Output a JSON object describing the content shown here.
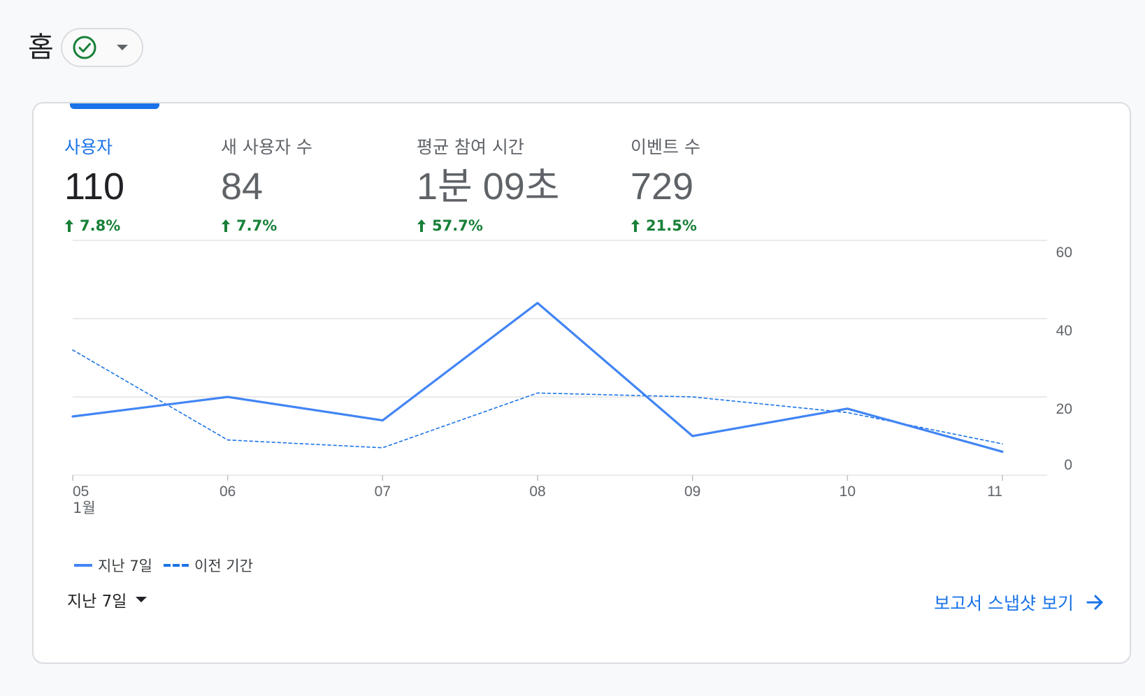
{
  "header": {
    "title": "홈"
  },
  "metrics": [
    {
      "label": "사용자",
      "value": "110",
      "change": "7.8%",
      "active": true
    },
    {
      "label": "새 사용자 수",
      "value": "84",
      "change": "7.7%",
      "active": false
    },
    {
      "label": "평균 참여 시간",
      "value": "1분 09초",
      "change": "57.7%",
      "active": false
    },
    {
      "label": "이벤트 수",
      "value": "729",
      "change": "21.5%",
      "active": false
    }
  ],
  "colors": {
    "accent": "#1a73e8",
    "positive": "#188038",
    "series_line": "#4285f4"
  },
  "chart_data": {
    "type": "line",
    "x": [
      "05",
      "06",
      "07",
      "08",
      "09",
      "10",
      "11"
    ],
    "x_sublabel": "1월",
    "series": [
      {
        "name": "지난 7일",
        "style": "solid",
        "values": [
          15,
          20,
          14,
          44,
          10,
          17,
          6
        ]
      },
      {
        "name": "이전 기간",
        "style": "dashed",
        "values": [
          32,
          9,
          7,
          21,
          20,
          16,
          8
        ]
      }
    ],
    "yticks": [
      0,
      20,
      40,
      60
    ],
    "ylim": [
      0,
      60
    ],
    "y_axis_side": "right",
    "grid": true
  },
  "footer": {
    "period_label": "지난 7일",
    "snapshot_link": "보고서 스냅샷 보기"
  }
}
